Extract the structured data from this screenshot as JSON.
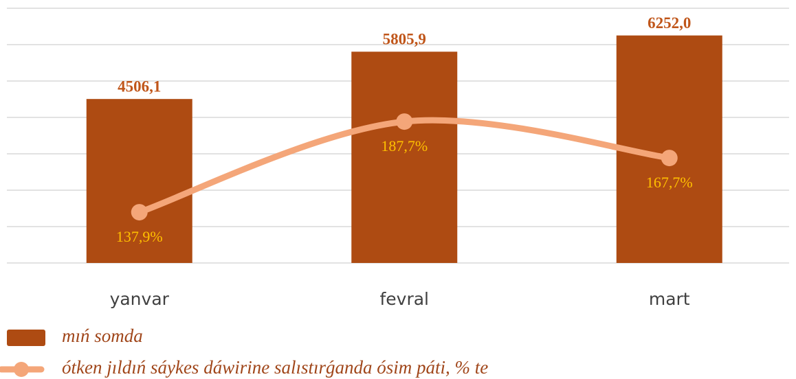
{
  "chart_data": {
    "type": "bar",
    "categories": [
      "yanvar",
      "fevral",
      "mart"
    ],
    "series": [
      {
        "name": "mıń somda",
        "type": "bar",
        "color": "#ae4b12",
        "values": [
          4506.1,
          5805.9,
          6252.0
        ],
        "value_labels": [
          "4506,1",
          "5805,9",
          "6252,0"
        ]
      },
      {
        "name": "ótken jıldıń sáykes dáwirine salıstırǵanda ósim páti, % te",
        "type": "line",
        "axis": "y2",
        "color": "#f4a679",
        "values": [
          137.9,
          187.7,
          167.7
        ],
        "value_labels": [
          "137,9%",
          "187,7%",
          "167,7%"
        ]
      }
    ],
    "ylim": [
      0,
      7000
    ],
    "yticks": [
      0,
      1000,
      2000,
      3000,
      4000,
      5000,
      6000,
      7000
    ],
    "y2lim": [
      110,
      250
    ],
    "grid": true,
    "legend": "bottom-left"
  }
}
